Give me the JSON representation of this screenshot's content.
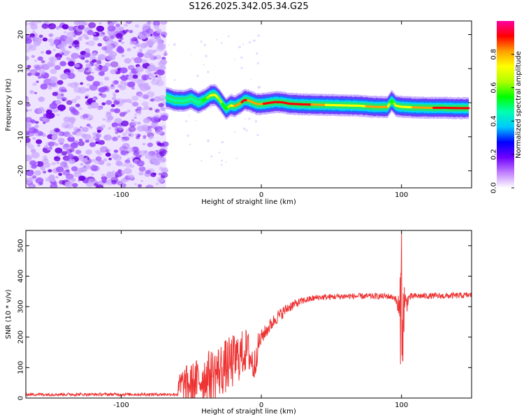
{
  "figure_title": "S126.2025.342.05.34.G25",
  "chart_data": [
    {
      "type": "heatmap",
      "title": "S126.2025.342.05.34.G25",
      "xlabel": "Height of straight line (km)",
      "ylabel": "Frequency (Hz)",
      "xlim": [
        -168,
        150
      ],
      "ylim": [
        -25,
        24
      ],
      "xticks": [
        -100,
        0,
        100
      ],
      "yticks": [
        -20,
        -10,
        0,
        10,
        20
      ],
      "noise_region_x": [
        -168,
        -68
      ],
      "signal_region_x": [
        -68,
        148
      ],
      "ridge": {
        "x": [
          -68,
          -62,
          -55,
          -50,
          -45,
          -40,
          -36,
          -33,
          -30,
          -27,
          -25,
          -22,
          -19,
          -15,
          -12,
          -9,
          -6,
          -3,
          0,
          5,
          10,
          15,
          20,
          30,
          40,
          50,
          60,
          70,
          80,
          90,
          93,
          96,
          100,
          110,
          120,
          130,
          140,
          148
        ],
        "y": [
          1.5,
          0.7,
          0.5,
          1.2,
          0.0,
          1.0,
          2.2,
          2.3,
          1.0,
          -0.8,
          -1.8,
          -0.8,
          -1.0,
          -0.2,
          0.8,
          0.6,
          0.1,
          -0.4,
          -0.4,
          -0.1,
          0.2,
          0.1,
          -0.3,
          -0.5,
          -0.6,
          -0.7,
          -0.8,
          -0.9,
          -1.2,
          -1.3,
          0.6,
          -0.9,
          -1.2,
          -1.4,
          -1.5,
          -1.5,
          -1.6,
          -1.6
        ],
        "amplitude": [
          0.45,
          0.5,
          0.45,
          0.5,
          0.45,
          0.55,
          0.7,
          0.75,
          0.65,
          0.55,
          0.55,
          0.7,
          0.8,
          0.85,
          0.9,
          0.85,
          0.8,
          0.85,
          0.85,
          0.9,
          0.95,
          0.9,
          0.9,
          0.95,
          0.8,
          0.75,
          0.75,
          0.75,
          0.8,
          0.8,
          0.5,
          0.7,
          0.7,
          0.8,
          0.85,
          0.9,
          0.95,
          0.95
        ]
      },
      "colorbar": {
        "label": "Normalized spectral amplitude",
        "range": [
          0.0,
          1.0
        ],
        "ticks": [
          0.0,
          0.2,
          0.4,
          0.6,
          0.8
        ],
        "tick_labels": [
          "0.0",
          "0.2",
          "0.4",
          "0.6",
          "0.8"
        ],
        "colormap": [
          "#ffffff",
          "#c080ff",
          "#7000ff",
          "#0000ff",
          "#00c8ff",
          "#00ffb0",
          "#00ff00",
          "#b0ff00",
          "#ffff00",
          "#ffa000",
          "#ff0000",
          "#ff00a0"
        ]
      }
    },
    {
      "type": "line",
      "xlabel": "Height of straight line (km)",
      "ylabel": "SNR (10 * v/v)",
      "xlim": [
        -168,
        150
      ],
      "ylim": [
        0,
        550
      ],
      "xticks": [
        -100,
        0,
        100
      ],
      "yticks": [
        0,
        100,
        200,
        300,
        400,
        500
      ],
      "color": "#ee3333",
      "profile": {
        "x": [
          -168,
          -60,
          -58,
          -50,
          -40,
          -30,
          -20,
          -15,
          -10,
          -5,
          -3,
          0,
          10,
          20,
          25,
          30,
          40,
          50,
          60,
          70,
          80,
          90,
          95,
          97,
          99,
          100,
          101,
          102,
          103,
          105,
          110,
          120,
          130,
          140,
          150
        ],
        "mean": [
          12,
          12,
          40,
          45,
          70,
          90,
          120,
          140,
          160,
          100,
          160,
          200,
          260,
          300,
          310,
          320,
          330,
          332,
          334,
          334,
          334,
          334,
          330,
          310,
          250,
          340,
          250,
          320,
          300,
          330,
          335,
          335,
          335,
          336,
          338
        ],
        "jitter": [
          5,
          5,
          60,
          70,
          80,
          90,
          90,
          80,
          70,
          60,
          50,
          25,
          22,
          18,
          14,
          12,
          10,
          10,
          10,
          10,
          10,
          10,
          10,
          20,
          150,
          200,
          150,
          90,
          50,
          14,
          10,
          10,
          10,
          10,
          10
        ]
      },
      "peak": {
        "x": 100,
        "y": 545
      },
      "trough": {
        "x": 101,
        "y": 120
      }
    }
  ]
}
